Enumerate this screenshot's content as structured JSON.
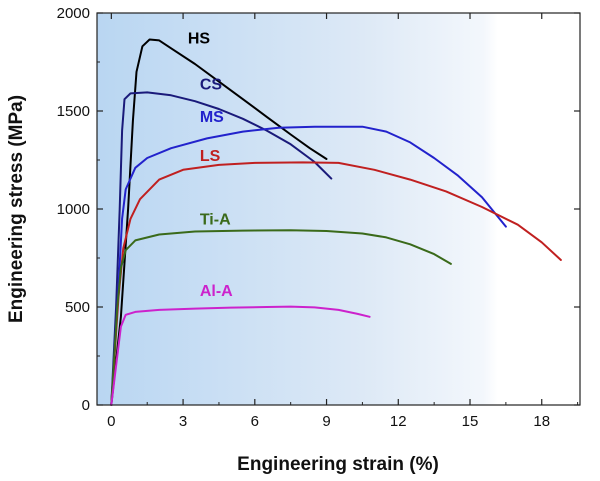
{
  "chart_data": {
    "type": "line",
    "xlabel": "Engineering strain (%)",
    "ylabel": "Engineering stress (MPa)",
    "xlim": [
      -0.6,
      19.6
    ],
    "ylim": [
      0,
      2000
    ],
    "xticks": [
      0,
      3,
      6,
      9,
      12,
      15,
      18
    ],
    "yticks": [
      0,
      500,
      1000,
      1500,
      2000
    ],
    "grid": false,
    "legend": "labels next to curves",
    "background": "gradient light blue to white",
    "series": [
      {
        "name": "HS",
        "color": "#000000",
        "label_at": [
          3.2,
          1845
        ],
        "points": [
          [
            0,
            0
          ],
          [
            0.4,
            450
          ],
          [
            0.7,
            1000
          ],
          [
            0.9,
            1450
          ],
          [
            1.05,
            1700
          ],
          [
            1.3,
            1830
          ],
          [
            1.6,
            1865
          ],
          [
            2.0,
            1860
          ],
          [
            2.5,
            1820
          ],
          [
            3.5,
            1740
          ],
          [
            4.5,
            1650
          ],
          [
            5.5,
            1560
          ],
          [
            6.5,
            1470
          ],
          [
            7.5,
            1380
          ],
          [
            8.3,
            1310
          ],
          [
            9.0,
            1255
          ]
        ]
      },
      {
        "name": "CS",
        "color": "#1a1a7a",
        "label_at": [
          3.7,
          1610
        ],
        "points": [
          [
            0,
            0
          ],
          [
            0.2,
            500
          ],
          [
            0.35,
            1000
          ],
          [
            0.45,
            1400
          ],
          [
            0.55,
            1560
          ],
          [
            0.8,
            1590
          ],
          [
            1.5,
            1595
          ],
          [
            2.5,
            1580
          ],
          [
            3.5,
            1550
          ],
          [
            4.5,
            1510
          ],
          [
            5.5,
            1460
          ],
          [
            6.5,
            1400
          ],
          [
            7.5,
            1330
          ],
          [
            8.5,
            1240
          ],
          [
            9.2,
            1155
          ]
        ]
      },
      {
        "name": "MS",
        "color": "#2222cc",
        "label_at": [
          3.7,
          1445
        ],
        "points": [
          [
            0,
            0
          ],
          [
            0.3,
            600
          ],
          [
            0.45,
            950
          ],
          [
            0.6,
            1100
          ],
          [
            1.0,
            1210
          ],
          [
            1.5,
            1260
          ],
          [
            2.5,
            1310
          ],
          [
            4.0,
            1360
          ],
          [
            5.5,
            1395
          ],
          [
            7.0,
            1415
          ],
          [
            8.5,
            1420
          ],
          [
            10.5,
            1420
          ],
          [
            11.5,
            1395
          ],
          [
            12.5,
            1340
          ],
          [
            13.5,
            1260
          ],
          [
            14.5,
            1170
          ],
          [
            15.5,
            1060
          ],
          [
            16.5,
            910
          ]
        ]
      },
      {
        "name": "LS",
        "color": "#c02020",
        "label_at": [
          3.7,
          1245
        ],
        "points": [
          [
            0,
            0
          ],
          [
            0.3,
            550
          ],
          [
            0.5,
            800
          ],
          [
            0.8,
            950
          ],
          [
            1.2,
            1050
          ],
          [
            2.0,
            1150
          ],
          [
            3.0,
            1200
          ],
          [
            4.5,
            1225
          ],
          [
            6.0,
            1235
          ],
          [
            8.0,
            1238
          ],
          [
            9.5,
            1235
          ],
          [
            11.0,
            1200
          ],
          [
            12.5,
            1150
          ],
          [
            14.0,
            1090
          ],
          [
            15.5,
            1010
          ],
          [
            17.0,
            920
          ],
          [
            18.0,
            830
          ],
          [
            18.8,
            740
          ]
        ]
      },
      {
        "name": "Ti-A",
        "color": "#3a6a1a",
        "label_at": [
          3.7,
          920
        ],
        "points": [
          [
            0,
            0
          ],
          [
            0.25,
            500
          ],
          [
            0.4,
            700
          ],
          [
            0.6,
            790
          ],
          [
            1.0,
            840
          ],
          [
            2.0,
            870
          ],
          [
            3.5,
            885
          ],
          [
            5.5,
            890
          ],
          [
            7.5,
            892
          ],
          [
            9.0,
            888
          ],
          [
            10.5,
            875
          ],
          [
            11.5,
            855
          ],
          [
            12.5,
            820
          ],
          [
            13.5,
            770
          ],
          [
            14.2,
            720
          ]
        ]
      },
      {
        "name": "Al-A",
        "color": "#cc22cc",
        "label_at": [
          3.7,
          555
        ],
        "points": [
          [
            0,
            0
          ],
          [
            0.2,
            200
          ],
          [
            0.4,
            400
          ],
          [
            0.6,
            460
          ],
          [
            1.0,
            475
          ],
          [
            2.0,
            485
          ],
          [
            3.5,
            492
          ],
          [
            5.0,
            497
          ],
          [
            6.5,
            500
          ],
          [
            7.5,
            502
          ],
          [
            8.5,
            498
          ],
          [
            9.5,
            485
          ],
          [
            10.3,
            465
          ],
          [
            10.8,
            450
          ]
        ]
      }
    ]
  }
}
